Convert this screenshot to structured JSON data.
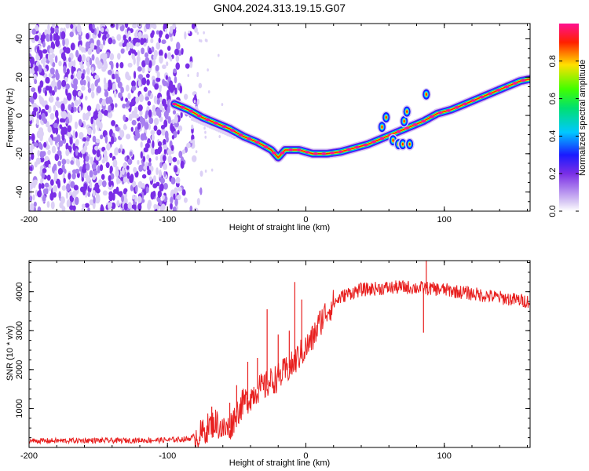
{
  "title": "GN04.2024.313.19.15.G07",
  "chart_data": [
    {
      "type": "heatmap",
      "xlabel": "Height of straight line (km)",
      "ylabel": "Frequency (Hz)",
      "xlim": [
        -200,
        162
      ],
      "ylim": [
        -50,
        48
      ],
      "x_ticks": [
        "-200",
        "-100",
        "0",
        "100"
      ],
      "y_ticks": [
        "-40",
        "-20",
        "0",
        "20",
        "40"
      ],
      "colorbar": {
        "label": "Normalized spectral amplitude",
        "range": [
          0.0,
          1.0
        ],
        "ticks": [
          "0.0",
          "0.2",
          "0.4",
          "0.6",
          "0.8"
        ],
        "colormap": "rainbow"
      },
      "noise_region_x": [
        -200,
        -85
      ],
      "ridge": {
        "x": [
          -95,
          -85,
          -75,
          -65,
          -55,
          -45,
          -35,
          -25,
          -20,
          -15,
          -5,
          5,
          15,
          25,
          35,
          45,
          55,
          65,
          75,
          85,
          95,
          105,
          115,
          125,
          135,
          145,
          155,
          162
        ],
        "y": [
          6,
          3,
          -1,
          -4,
          -7,
          -11,
          -14,
          -18,
          -22,
          -18,
          -18,
          -20,
          -20,
          -19,
          -17,
          -15,
          -12,
          -9,
          -6,
          -3,
          1,
          3,
          6,
          9,
          12,
          15,
          18,
          19
        ]
      },
      "islands": [
        {
          "x": 55,
          "y": -6
        },
        {
          "x": 58,
          "y": -1
        },
        {
          "x": 63,
          "y": -13
        },
        {
          "x": 67,
          "y": -15
        },
        {
          "x": 70,
          "y": -15
        },
        {
          "x": 71,
          "y": -3
        },
        {
          "x": 73,
          "y": 2
        },
        {
          "x": 75,
          "y": -15
        },
        {
          "x": 87,
          "y": 11
        }
      ]
    },
    {
      "type": "line",
      "xlabel": "Height of straight line (km)",
      "ylabel": "SNR (10 * v/v)",
      "xlim": [
        -200,
        162
      ],
      "ylim": [
        0,
        4800
      ],
      "x_ticks": [
        "-200",
        "-100",
        "0",
        "100"
      ],
      "y_ticks": [
        "1000",
        "2000",
        "3000",
        "4000"
      ],
      "series": [
        {
          "color": "#e8201f",
          "x": [
            -200,
            -180,
            -160,
            -140,
            -120,
            -100,
            -85,
            -75,
            -70,
            -65,
            -60,
            -55,
            -50,
            -45,
            -40,
            -35,
            -30,
            -25,
            -20,
            -15,
            -10,
            -5,
            0,
            5,
            10,
            15,
            20,
            25,
            30,
            40,
            50,
            60,
            70,
            80,
            90,
            100,
            110,
            120,
            130,
            140,
            150,
            162
          ],
          "y": [
            170,
            170,
            180,
            175,
            185,
            190,
            220,
            350,
            550,
            650,
            450,
            500,
            900,
            1150,
            1300,
            1500,
            1550,
            1700,
            1800,
            1950,
            2100,
            2350,
            2550,
            2800,
            3200,
            3500,
            3700,
            3850,
            3950,
            4050,
            4080,
            4100,
            4120,
            4100,
            4080,
            4050,
            4000,
            3950,
            3900,
            3850,
            3800,
            3750
          ]
        }
      ],
      "spikes": [
        {
          "x": -68,
          "y": 1050
        },
        {
          "x": -55,
          "y": 1150
        },
        {
          "x": -50,
          "y": 1600
        },
        {
          "x": -42,
          "y": 2200
        },
        {
          "x": -35,
          "y": 2300
        },
        {
          "x": -28,
          "y": 3550
        },
        {
          "x": -20,
          "y": 2900
        },
        {
          "x": -12,
          "y": 3000
        },
        {
          "x": -8,
          "y": 4250
        },
        {
          "x": -3,
          "y": 3800
        },
        {
          "x": 87,
          "y": 4800
        },
        {
          "x": 85,
          "y": 2950
        }
      ]
    }
  ]
}
